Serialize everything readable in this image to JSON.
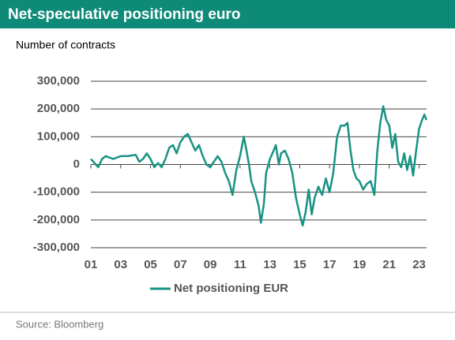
{
  "chart_data": {
    "type": "line",
    "title": "Net-speculative positioning euro",
    "subtitle": "Number of contracts",
    "source": "Source: Bloomberg",
    "xlim": [
      2001,
      2023.5
    ],
    "xticks": [
      {
        "value": 2001,
        "label": "01"
      },
      {
        "value": 2003,
        "label": "03"
      },
      {
        "value": 2005,
        "label": "05"
      },
      {
        "value": 2007,
        "label": "07"
      },
      {
        "value": 2009,
        "label": "09"
      },
      {
        "value": 2011,
        "label": "11"
      },
      {
        "value": 2013,
        "label": "13"
      },
      {
        "value": 2015,
        "label": "15"
      },
      {
        "value": 2017,
        "label": "17"
      },
      {
        "value": 2019,
        "label": "19"
      },
      {
        "value": 2021,
        "label": "21"
      },
      {
        "value": 2023,
        "label": "23"
      }
    ],
    "ylim": [
      -300000,
      300000
    ],
    "yticks": [
      {
        "value": -300000,
        "label": "-300,000"
      },
      {
        "value": -200000,
        "label": "-200,000"
      },
      {
        "value": -100000,
        "label": "-100,000"
      },
      0,
      {
        "value": 100000,
        "label": "100,000"
      },
      {
        "value": 200000,
        "label": "200,000"
      },
      {
        "value": 300000,
        "label": "300,000"
      }
    ],
    "grid": true,
    "legend": "bottom",
    "x": [
      2001,
      2001.25,
      2001.5,
      2001.75,
      2002,
      2002.5,
      2003,
      2003.5,
      2004,
      2004.25,
      2004.5,
      2004.75,
      2005,
      2005.25,
      2005.5,
      2005.75,
      2006,
      2006.25,
      2006.5,
      2006.75,
      2007,
      2007.25,
      2007.5,
      2007.75,
      2008,
      2008.25,
      2008.5,
      2008.75,
      2009,
      2009.25,
      2009.5,
      2009.75,
      2010,
      2010.25,
      2010.5,
      2010.75,
      2011,
      2011.25,
      2011.4,
      2011.6,
      2011.75,
      2012,
      2012.25,
      2012.4,
      2012.6,
      2012.75,
      2013,
      2013.25,
      2013.4,
      2013.6,
      2013.75,
      2014,
      2014.25,
      2014.5,
      2014.75,
      2015,
      2015.2,
      2015.4,
      2015.6,
      2015.8,
      2016,
      2016.25,
      2016.5,
      2016.75,
      2017,
      2017.25,
      2017.5,
      2017.75,
      2018,
      2018.2,
      2018.4,
      2018.6,
      2018.8,
      2019,
      2019.25,
      2019.5,
      2019.75,
      2020,
      2020.2,
      2020.4,
      2020.6,
      2020.8,
      2021,
      2021.2,
      2021.4,
      2021.6,
      2021.8,
      2022,
      2022.2,
      2022.4,
      2022.6,
      2022.8,
      2023,
      2023.2,
      2023.35,
      2023.5
    ],
    "series": [
      {
        "name": "Net positioning EUR",
        "color": "#179383",
        "values": [
          20000,
          5000,
          -10000,
          20000,
          30000,
          20000,
          30000,
          30000,
          35000,
          10000,
          20000,
          40000,
          20000,
          -10000,
          5000,
          -10000,
          20000,
          60000,
          70000,
          40000,
          80000,
          100000,
          110000,
          80000,
          50000,
          70000,
          30000,
          0,
          -10000,
          10000,
          30000,
          10000,
          -30000,
          -60000,
          -110000,
          -20000,
          30000,
          100000,
          60000,
          0,
          -60000,
          -100000,
          -150000,
          -210000,
          -140000,
          -30000,
          20000,
          50000,
          70000,
          0,
          40000,
          50000,
          20000,
          -30000,
          -120000,
          -180000,
          -220000,
          -170000,
          -90000,
          -180000,
          -120000,
          -80000,
          -110000,
          -50000,
          -100000,
          -30000,
          100000,
          140000,
          140000,
          150000,
          50000,
          -20000,
          -50000,
          -60000,
          -90000,
          -70000,
          -60000,
          -110000,
          50000,
          150000,
          210000,
          160000,
          140000,
          60000,
          110000,
          10000,
          -10000,
          40000,
          -20000,
          30000,
          -40000,
          50000,
          130000,
          160000,
          180000,
          160000
        ]
      }
    ]
  }
}
